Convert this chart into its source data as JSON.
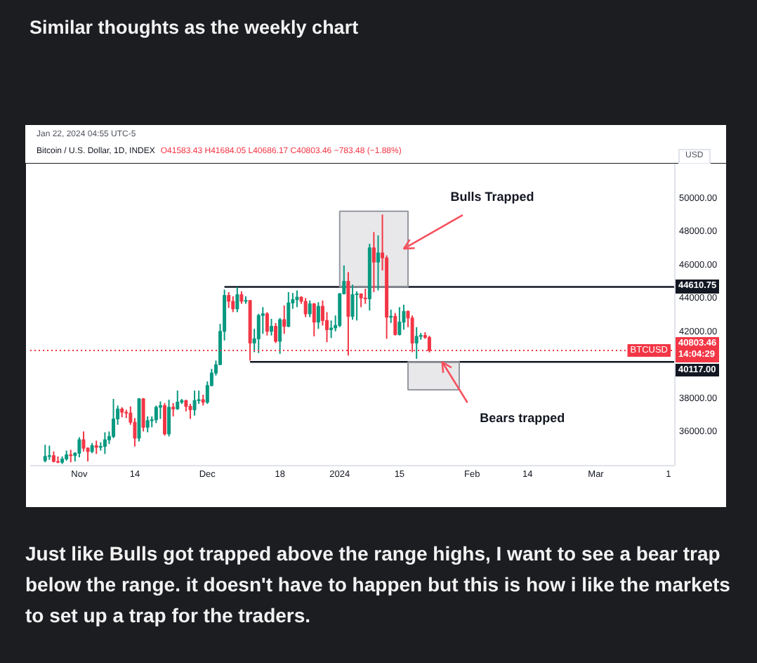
{
  "chart_data": {
    "type": "candlestick",
    "title": "Similar thoughts as the weekly chart",
    "subtitle": "Bitcoin / U.S. Dollar, 1D, INDEX",
    "ylabel": "USD",
    "xlim": [
      "2023-10-20T12:00",
      "2024-03-19T12:00"
    ],
    "ylim": [
      33900,
      52000
    ],
    "xticks": [
      {
        "value": "2023-11-01",
        "label": "Nov"
      },
      {
        "value": "2023-11-14",
        "label": "14"
      },
      {
        "value": "2023-12-01",
        "label": "Dec"
      },
      {
        "value": "2023-12-18",
        "label": "18"
      },
      {
        "value": "2024-01-01",
        "label": "2024"
      },
      {
        "value": "2024-01-15",
        "label": "15"
      },
      {
        "value": "2024-02-01",
        "label": "Feb"
      },
      {
        "value": "2024-02-14",
        "label": "14"
      },
      {
        "value": "2024-03-01",
        "label": "Mar"
      },
      {
        "value": "2024-03-18",
        "label": "1"
      }
    ],
    "yticks": [
      {
        "value": 36000,
        "label": "36000.00"
      },
      {
        "value": 38000,
        "label": "38000.00"
      },
      {
        "value": 40000,
        "label": null
      },
      {
        "value": 42000,
        "label": "42000.00"
      },
      {
        "value": 44000,
        "label": "44000.00"
      },
      {
        "value": 46000,
        "label": "46000.00"
      },
      {
        "value": 48000,
        "label": "48000.00"
      },
      {
        "value": 50000,
        "label": "50000.00"
      }
    ],
    "series": [
      {
        "name": "BTCUSD",
        "x": [
          "2023-10-24",
          "2023-10-25",
          "2023-10-26",
          "2023-10-27",
          "2023-10-28",
          "2023-10-29",
          "2023-10-30",
          "2023-10-31",
          "2023-11-01",
          "2023-11-02",
          "2023-11-03",
          "2023-11-04",
          "2023-11-05",
          "2023-11-06",
          "2023-11-07",
          "2023-11-08",
          "2023-11-09",
          "2023-11-10",
          "2023-11-11",
          "2023-11-12",
          "2023-11-13",
          "2023-11-14",
          "2023-11-15",
          "2023-11-16",
          "2023-11-17",
          "2023-11-18",
          "2023-11-19",
          "2023-11-20",
          "2023-11-21",
          "2023-11-22",
          "2023-11-23",
          "2023-11-24",
          "2023-11-25",
          "2023-11-26",
          "2023-11-27",
          "2023-11-28",
          "2023-11-29",
          "2023-11-30",
          "2023-12-01",
          "2023-12-02",
          "2023-12-03",
          "2023-12-04",
          "2023-12-05",
          "2023-12-06",
          "2023-12-07",
          "2023-12-08",
          "2023-12-09",
          "2023-12-10",
          "2023-12-11",
          "2023-12-12",
          "2023-12-13",
          "2023-12-14",
          "2023-12-15",
          "2023-12-16",
          "2023-12-17",
          "2023-12-18",
          "2023-12-19",
          "2023-12-20",
          "2023-12-21",
          "2023-12-22",
          "2023-12-23",
          "2023-12-24",
          "2023-12-25",
          "2023-12-26",
          "2023-12-27",
          "2023-12-28",
          "2023-12-29",
          "2023-12-30",
          "2023-12-31",
          "2024-01-01",
          "2024-01-02",
          "2024-01-03",
          "2024-01-04",
          "2024-01-05",
          "2024-01-06",
          "2024-01-07",
          "2024-01-08",
          "2024-01-09",
          "2024-01-10",
          "2024-01-11",
          "2024-01-12",
          "2024-01-13",
          "2024-01-14",
          "2024-01-15",
          "2024-01-16",
          "2024-01-17",
          "2024-01-18",
          "2024-01-19",
          "2024-01-20",
          "2024-01-21",
          "2024-01-22"
        ],
        "ohlc": [
          [
            34200,
            35150,
            34100,
            34450
          ],
          [
            34450,
            35100,
            34250,
            34500
          ],
          [
            34500,
            34750,
            34100,
            34150
          ],
          [
            34150,
            34450,
            34050,
            34100
          ],
          [
            34100,
            34450,
            34000,
            34300
          ],
          [
            34300,
            34800,
            34200,
            34550
          ],
          [
            34550,
            34850,
            34100,
            34500
          ],
          [
            34500,
            34700,
            34150,
            34650
          ],
          [
            34650,
            35600,
            34400,
            35450
          ],
          [
            35450,
            35950,
            34750,
            34950
          ],
          [
            34950,
            35000,
            34150,
            34750
          ],
          [
            34750,
            35250,
            34650,
            35100
          ],
          [
            35100,
            35400,
            34600,
            35000
          ],
          [
            35000,
            35300,
            34800,
            35050
          ],
          [
            35050,
            35900,
            34600,
            35450
          ],
          [
            35450,
            35950,
            35200,
            35650
          ],
          [
            35650,
            37900,
            35550,
            36700
          ],
          [
            36700,
            37500,
            36350,
            37300
          ],
          [
            37300,
            37400,
            36800,
            37100
          ],
          [
            37100,
            37250,
            36750,
            37050
          ],
          [
            37050,
            37450,
            36350,
            36500
          ],
          [
            36500,
            36750,
            35050,
            35550
          ],
          [
            35550,
            37950,
            35350,
            37900
          ],
          [
            37900,
            37950,
            35950,
            36200
          ],
          [
            36200,
            36850,
            35900,
            36600
          ],
          [
            36600,
            36850,
            36200,
            36650
          ],
          [
            36650,
            37500,
            36450,
            37400
          ],
          [
            37400,
            37750,
            36700,
            37500
          ],
          [
            37500,
            37650,
            35700,
            35800
          ],
          [
            35800,
            37850,
            35650,
            37400
          ],
          [
            37400,
            37650,
            36850,
            37300
          ],
          [
            37300,
            38400,
            37250,
            37700
          ],
          [
            37700,
            37900,
            37600,
            37800
          ],
          [
            37800,
            37850,
            37150,
            37450
          ],
          [
            37450,
            37600,
            36700,
            37250
          ],
          [
            37250,
            38400,
            36900,
            37800
          ],
          [
            37800,
            38400,
            37600,
            37850
          ],
          [
            37850,
            38150,
            37500,
            37700
          ],
          [
            37700,
            38950,
            37600,
            38700
          ],
          [
            38700,
            39700,
            38650,
            39450
          ],
          [
            39450,
            40200,
            39300,
            39950
          ],
          [
            39950,
            42400,
            39950,
            41950
          ],
          [
            41950,
            44450,
            41400,
            44100
          ],
          [
            44100,
            44300,
            43350,
            43750
          ],
          [
            43750,
            44050,
            43100,
            43300
          ],
          [
            43300,
            44600,
            43100,
            44150
          ],
          [
            44150,
            44350,
            43600,
            43750
          ],
          [
            43750,
            44050,
            43600,
            43800
          ],
          [
            43800,
            43800,
            40200,
            41250
          ],
          [
            41250,
            42100,
            40700,
            41500
          ],
          [
            41500,
            43000,
            40650,
            42900
          ],
          [
            42900,
            43400,
            41800,
            43000
          ],
          [
            43000,
            43100,
            41700,
            41950
          ],
          [
            41950,
            42700,
            41700,
            42250
          ],
          [
            42250,
            42450,
            41250,
            41350
          ],
          [
            41350,
            42750,
            40600,
            42650
          ],
          [
            42650,
            43500,
            41800,
            42250
          ],
          [
            42250,
            44300,
            42200,
            43650
          ],
          [
            43650,
            44250,
            43300,
            43850
          ],
          [
            43850,
            44400,
            43400,
            44000
          ],
          [
            44000,
            44050,
            43600,
            43750
          ],
          [
            43750,
            43950,
            42800,
            43000
          ],
          [
            43000,
            43800,
            42800,
            43600
          ],
          [
            43600,
            43650,
            41650,
            42500
          ],
          [
            42500,
            43700,
            42100,
            43450
          ],
          [
            43450,
            43800,
            42300,
            42600
          ],
          [
            42600,
            43100,
            41300,
            42050
          ],
          [
            42050,
            42600,
            41550,
            42150
          ],
          [
            42150,
            42900,
            41950,
            42300
          ],
          [
            42300,
            44250,
            42200,
            44200
          ],
          [
            44200,
            45900,
            44200,
            44950
          ],
          [
            44950,
            45500,
            40500,
            42850
          ],
          [
            42850,
            44750,
            42650,
            44150
          ],
          [
            44150,
            44350,
            42600,
            44200
          ],
          [
            44200,
            44200,
            43400,
            43950
          ],
          [
            43950,
            44500,
            43600,
            43900
          ],
          [
            43900,
            47200,
            43200,
            46950
          ],
          [
            46950,
            47900,
            44300,
            46100
          ],
          [
            46100,
            47700,
            44400,
            46650
          ],
          [
            46650,
            48950,
            45600,
            46350
          ],
          [
            46350,
            46500,
            41500,
            42800
          ],
          [
            42800,
            43250,
            42450,
            42850
          ],
          [
            42850,
            43050,
            41700,
            41750
          ],
          [
            41750,
            43400,
            41700,
            42500
          ],
          [
            42500,
            43550,
            42050,
            43150
          ],
          [
            43150,
            43200,
            42200,
            42750
          ],
          [
            42750,
            42900,
            40700,
            41250
          ],
          [
            41250,
            42200,
            40300,
            41650
          ],
          [
            41650,
            41850,
            41450,
            41700
          ],
          [
            41700,
            41900,
            41500,
            41590
          ],
          [
            41583.43,
            41684.05,
            40686.17,
            40803.46
          ]
        ],
        "colors": [
          "#089981",
          "#089981",
          "#f23645",
          "#f23645",
          "#089981",
          "#089981",
          "#f23645",
          "#089981",
          "#089981",
          "#f23645",
          "#f23645",
          "#089981",
          "#f23645",
          "#089981",
          "#089981",
          "#089981",
          "#089981",
          "#089981",
          "#f23645",
          "#f23645",
          "#f23645",
          "#f23645",
          "#089981",
          "#f23645",
          "#089981",
          "#089981",
          "#089981",
          "#089981",
          "#f23645",
          "#089981",
          "#f23645",
          "#089981",
          "#089981",
          "#f23645",
          "#f23645",
          "#089981",
          "#089981",
          "#f23645",
          "#089981",
          "#089981",
          "#089981",
          "#089981",
          "#089981",
          "#f23645",
          "#f23645",
          "#089981",
          "#f23645",
          "#089981",
          "#f23645",
          "#089981",
          "#089981",
          "#089981",
          "#f23645",
          "#089981",
          "#f23645",
          "#089981",
          "#f23645",
          "#089981",
          "#089981",
          "#089981",
          "#f23645",
          "#f23645",
          "#089981",
          "#f23645",
          "#089981",
          "#f23645",
          "#f23645",
          "#089981",
          "#089981",
          "#089981",
          "#089981",
          "#f23645",
          "#089981",
          "#089981",
          "#f23645",
          "#f23645",
          "#089981",
          "#f23645",
          "#089981",
          "#f23645",
          "#f23645",
          "#089981",
          "#f23645",
          "#089981",
          "#089981",
          "#f23645",
          "#f23645",
          "#089981",
          "#089981",
          "#f23645",
          "#f23645"
        ]
      },
      {
        "type": "line",
        "x": [
          "2023-12-05",
          "2024-03-19T12:00"
        ],
        "values": [
          44610.75,
          44610.75
        ],
        "color": "#131722",
        "value_labels": [
          null,
          "44610.75"
        ]
      },
      {
        "type": "line",
        "x": [
          "2023-12-11",
          "2024-03-19T12:00"
        ],
        "values": [
          40117,
          40117
        ],
        "color": "#131722",
        "value_labels": [
          null,
          "40117.00"
        ]
      },
      {
        "type": "line",
        "x": [
          "2024-01-01",
          "2024-01-17"
        ],
        "values": [
          null,
          null
        ],
        "lower": [
          44610.75,
          44610.75
        ],
        "upper": [
          49150,
          49150
        ],
        "color": "#9598a1"
      },
      {
        "type": "line",
        "x": [
          "2024-01-17",
          "2024-01-29"
        ],
        "values": [
          null,
          null
        ],
        "lower": [
          38450,
          38450
        ],
        "upper": [
          40117,
          40117
        ],
        "color": "#9598a1"
      }
    ],
    "ref_lines": [
      {
        "axis": "y",
        "value": 40803.46,
        "label": "40803.46\n14:04:29",
        "color": "#f23645",
        "line_style": "dotted"
      }
    ],
    "annotations": [
      "Jan 22, 2024 04:55 UTC-5",
      "O41583.43 H41684.05 L40686.17 C40803.46 −783.48 (−1.88%)",
      {
        "text": "Bulls Trapped",
        "x": "2024-01-16",
        "y": 46900
      },
      {
        "text": "Bears trapped",
        "x": "2024-01-25",
        "y": 40117
      },
      "Just like Bulls got trapped above the range highs, I want to see a bear trap below the range. it doesn't have to happen but this is how i like the markets to set up a trap for the traders."
    ]
  }
}
